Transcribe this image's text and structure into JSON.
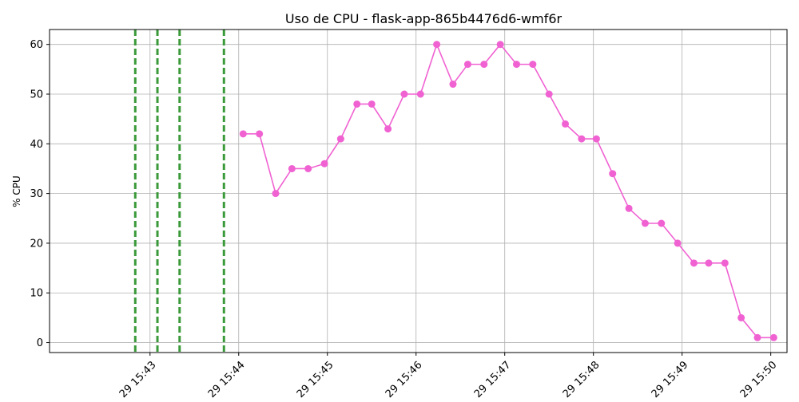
{
  "chart_data": {
    "type": "line",
    "title": "Uso de CPU - flask-app-865b4476d6-wmf6r",
    "xlabel": "",
    "ylabel": "% CPU",
    "ylim": [
      -2,
      63
    ],
    "xlim": [
      "15:41:52",
      "15:50:11"
    ],
    "grid": true,
    "line_color": "#f062d2",
    "marker_color": "#f062d2",
    "event_line_color": "#3a9a3a",
    "x_ticks": [
      "15:43",
      "15:44",
      "15:45",
      "15:46",
      "15:47",
      "15:48",
      "15:49",
      "15:50"
    ],
    "x_tick_labels": [
      "29 15:43",
      "29 15:44",
      "29 15:45",
      "29 15:46",
      "29 15:47",
      "29 15:48",
      "29 15:49",
      "29 15:50"
    ],
    "y_ticks": [
      0,
      10,
      20,
      30,
      40,
      50,
      60
    ],
    "vertical_markers": [
      "15:42:50",
      "15:43:05",
      "15:43:20",
      "15:43:50"
    ],
    "series": [
      {
        "x": [
          "15:44:03",
          "15:44:14",
          "15:44:25",
          "15:44:36",
          "15:44:47",
          "15:44:58",
          "15:45:09",
          "15:45:20",
          "15:45:30",
          "15:45:41",
          "15:45:52",
          "15:46:03",
          "15:46:14",
          "15:46:25",
          "15:46:35",
          "15:46:46",
          "15:46:57",
          "15:47:08",
          "15:47:19",
          "15:47:30",
          "15:47:41",
          "15:47:52",
          "15:48:02",
          "15:48:13",
          "15:48:24",
          "15:48:35",
          "15:48:46",
          "15:48:57",
          "15:49:08",
          "15:49:18",
          "15:49:29",
          "15:49:40",
          "15:49:51",
          "15:50:02"
        ],
        "values": [
          42,
          42,
          30,
          35,
          35,
          36,
          41,
          48,
          48,
          43,
          50,
          50,
          60,
          52,
          56,
          56,
          60,
          56,
          56,
          50,
          44,
          41,
          41,
          34,
          27,
          24,
          24,
          20,
          16,
          16,
          16,
          5,
          1,
          1
        ]
      }
    ]
  }
}
